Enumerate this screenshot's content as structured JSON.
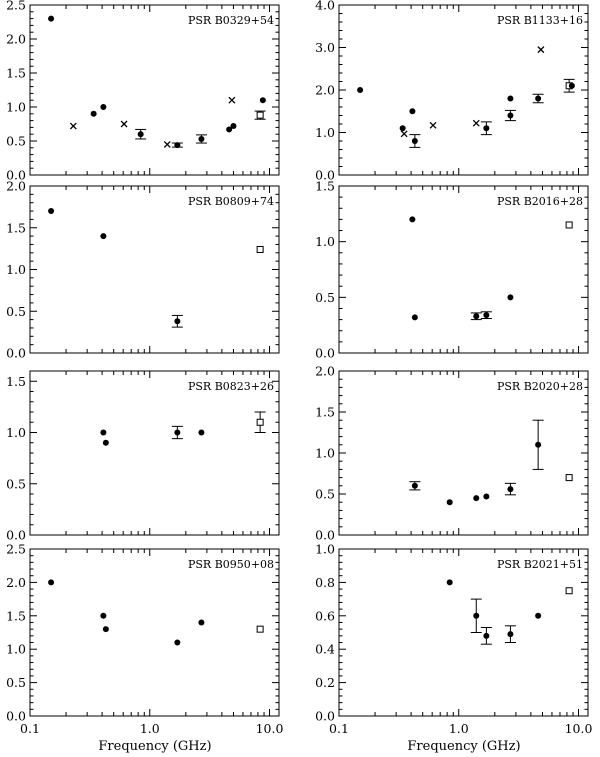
{
  "figure": {
    "xlabel": "Frequency (GHz)",
    "xticks": [
      0.1,
      1.0,
      10.0
    ],
    "xtick_labels": [
      "0.1",
      "1.0",
      "10.0"
    ]
  },
  "chart_data": [
    {
      "type": "scatter",
      "title": "PSR B0329+54",
      "xscale": "log",
      "xlim": [
        0.1,
        12
      ],
      "ylim": [
        0,
        2.5
      ],
      "yticks": [
        0,
        0.5,
        1.0,
        1.5,
        2.0,
        2.5
      ],
      "ytick_labels": [
        "0.0",
        "0.5",
        "1.0",
        "1.5",
        "2.0",
        "2.5"
      ],
      "points": [
        {
          "x": 0.15,
          "y": 2.3,
          "m": "dot"
        },
        {
          "x": 0.23,
          "y": 0.72,
          "m": "cross"
        },
        {
          "x": 0.34,
          "y": 0.9,
          "m": "dot"
        },
        {
          "x": 0.41,
          "y": 1.0,
          "m": "dot"
        },
        {
          "x": 0.61,
          "y": 0.75,
          "m": "cross"
        },
        {
          "x": 0.84,
          "y": 0.6,
          "m": "dot",
          "err": 0.07
        },
        {
          "x": 1.4,
          "y": 0.45,
          "m": "cross"
        },
        {
          "x": 1.7,
          "y": 0.44,
          "m": "dot",
          "err": 0.03
        },
        {
          "x": 2.7,
          "y": 0.53,
          "m": "dot",
          "err": 0.06
        },
        {
          "x": 4.6,
          "y": 0.67,
          "m": "dot"
        },
        {
          "x": 4.85,
          "y": 1.1,
          "m": "cross"
        },
        {
          "x": 5.0,
          "y": 0.72,
          "m": "dot"
        },
        {
          "x": 8.35,
          "y": 0.88,
          "m": "square",
          "err": 0.06
        },
        {
          "x": 8.8,
          "y": 1.1,
          "m": "dot"
        }
      ]
    },
    {
      "type": "scatter",
      "title": "PSR B1133+16",
      "xscale": "log",
      "xlim": [
        0.1,
        12
      ],
      "ylim": [
        0,
        4.0
      ],
      "yticks": [
        0,
        1.0,
        2.0,
        3.0,
        4.0
      ],
      "ytick_labels": [
        "0.0",
        "1.0",
        "2.0",
        "3.0",
        "4.0"
      ],
      "points": [
        {
          "x": 0.15,
          "y": 2.0,
          "m": "dot"
        },
        {
          "x": 0.34,
          "y": 1.1,
          "m": "dot"
        },
        {
          "x": 0.35,
          "y": 0.97,
          "m": "cross"
        },
        {
          "x": 0.41,
          "y": 1.5,
          "m": "dot"
        },
        {
          "x": 0.43,
          "y": 0.8,
          "m": "dot",
          "err": 0.15
        },
        {
          "x": 0.61,
          "y": 1.17,
          "m": "cross"
        },
        {
          "x": 1.4,
          "y": 1.22,
          "m": "cross"
        },
        {
          "x": 1.7,
          "y": 1.1,
          "m": "dot",
          "err": 0.15
        },
        {
          "x": 2.7,
          "y": 1.8,
          "m": "dot"
        },
        {
          "x": 2.7,
          "y": 1.4,
          "m": "dot",
          "err": 0.12
        },
        {
          "x": 4.6,
          "y": 1.8,
          "m": "dot",
          "err": 0.1
        },
        {
          "x": 4.85,
          "y": 2.95,
          "m": "cross"
        },
        {
          "x": 8.35,
          "y": 2.1,
          "m": "square",
          "err": 0.15
        },
        {
          "x": 8.8,
          "y": 2.1,
          "m": "dot"
        }
      ]
    },
    {
      "type": "scatter",
      "title": "PSR B0809+74",
      "xscale": "log",
      "xlim": [
        0.1,
        12
      ],
      "ylim": [
        0,
        2.0
      ],
      "yticks": [
        0,
        0.5,
        1.0,
        1.5,
        2.0
      ],
      "ytick_labels": [
        "0.0",
        "0.5",
        "1.0",
        "1.5",
        "2.0"
      ],
      "points": [
        {
          "x": 0.15,
          "y": 1.7,
          "m": "dot"
        },
        {
          "x": 0.41,
          "y": 1.4,
          "m": "dot"
        },
        {
          "x": 1.7,
          "y": 0.38,
          "m": "dot",
          "err": 0.07
        },
        {
          "x": 8.35,
          "y": 1.24,
          "m": "square"
        }
      ]
    },
    {
      "type": "scatter",
      "title": "PSR B2016+28",
      "xscale": "log",
      "xlim": [
        0.1,
        12
      ],
      "ylim": [
        0,
        1.5
      ],
      "yticks": [
        0,
        0.5,
        1.0,
        1.5
      ],
      "ytick_labels": [
        "0.0",
        "0.5",
        "1.0",
        "1.5"
      ],
      "points": [
        {
          "x": 0.41,
          "y": 1.2,
          "m": "dot"
        },
        {
          "x": 0.43,
          "y": 0.32,
          "m": "dot"
        },
        {
          "x": 1.4,
          "y": 0.33,
          "m": "dot",
          "err": 0.03
        },
        {
          "x": 1.7,
          "y": 0.34,
          "m": "dot",
          "err": 0.03
        },
        {
          "x": 2.7,
          "y": 0.5,
          "m": "dot"
        },
        {
          "x": 8.35,
          "y": 1.15,
          "m": "square"
        }
      ]
    },
    {
      "type": "scatter",
      "title": "PSR B0823+26",
      "xscale": "log",
      "xlim": [
        0.1,
        12
      ],
      "ylim": [
        0,
        1.6
      ],
      "yticks": [
        0,
        0.5,
        1.0,
        1.5
      ],
      "ytick_labels": [
        "0.0",
        "0.5",
        "1.0",
        "1.5"
      ],
      "points": [
        {
          "x": 0.41,
          "y": 1.0,
          "m": "dot"
        },
        {
          "x": 0.43,
          "y": 0.9,
          "m": "dot"
        },
        {
          "x": 1.7,
          "y": 1.0,
          "m": "dot",
          "err": 0.06
        },
        {
          "x": 2.7,
          "y": 1.0,
          "m": "dot"
        },
        {
          "x": 8.35,
          "y": 1.1,
          "m": "square",
          "err": 0.1
        }
      ]
    },
    {
      "type": "scatter",
      "title": "PSR B2020+28",
      "xscale": "log",
      "xlim": [
        0.1,
        12
      ],
      "ylim": [
        0,
        2.0
      ],
      "yticks": [
        0,
        0.5,
        1.0,
        1.5,
        2.0
      ],
      "ytick_labels": [
        "0.0",
        "0.5",
        "1.0",
        "1.5",
        "2.0"
      ],
      "points": [
        {
          "x": 0.43,
          "y": 0.6,
          "m": "dot",
          "err": 0.05
        },
        {
          "x": 0.84,
          "y": 0.4,
          "m": "dot"
        },
        {
          "x": 1.4,
          "y": 0.45,
          "m": "dot"
        },
        {
          "x": 1.7,
          "y": 0.47,
          "m": "dot"
        },
        {
          "x": 2.7,
          "y": 0.56,
          "m": "dot",
          "err": 0.07
        },
        {
          "x": 4.6,
          "y": 1.1,
          "m": "dot",
          "err": 0.3
        },
        {
          "x": 8.35,
          "y": 0.7,
          "m": "square"
        }
      ]
    },
    {
      "type": "scatter",
      "title": "PSR B0950+08",
      "xscale": "log",
      "xlim": [
        0.1,
        12
      ],
      "ylim": [
        0,
        2.5
      ],
      "yticks": [
        0,
        0.5,
        1.0,
        1.5,
        2.0,
        2.5
      ],
      "ytick_labels": [
        "0.0",
        "0.5",
        "1.0",
        "1.5",
        "2.0",
        "2.5"
      ],
      "points": [
        {
          "x": 0.15,
          "y": 2.0,
          "m": "dot"
        },
        {
          "x": 0.41,
          "y": 1.5,
          "m": "dot"
        },
        {
          "x": 0.43,
          "y": 1.3,
          "m": "dot"
        },
        {
          "x": 1.7,
          "y": 1.1,
          "m": "dot"
        },
        {
          "x": 2.7,
          "y": 1.4,
          "m": "dot"
        },
        {
          "x": 8.35,
          "y": 1.3,
          "m": "square"
        }
      ]
    },
    {
      "type": "scatter",
      "title": "PSR B2021+51",
      "xscale": "log",
      "xlim": [
        0.1,
        12
      ],
      "ylim": [
        0,
        1.0
      ],
      "yticks": [
        0,
        0.2,
        0.4,
        0.6,
        0.8,
        1.0
      ],
      "ytick_labels": [
        "0.0",
        "0.2",
        "0.4",
        "0.6",
        "0.8",
        "1.0"
      ],
      "points": [
        {
          "x": 0.84,
          "y": 0.8,
          "m": "dot"
        },
        {
          "x": 1.4,
          "y": 0.6,
          "m": "dot",
          "err": 0.1
        },
        {
          "x": 1.7,
          "y": 0.48,
          "m": "dot",
          "err": 0.05
        },
        {
          "x": 2.7,
          "y": 0.49,
          "m": "dot",
          "err": 0.05
        },
        {
          "x": 4.6,
          "y": 0.6,
          "m": "dot"
        },
        {
          "x": 8.35,
          "y": 0.75,
          "m": "square"
        }
      ]
    }
  ]
}
